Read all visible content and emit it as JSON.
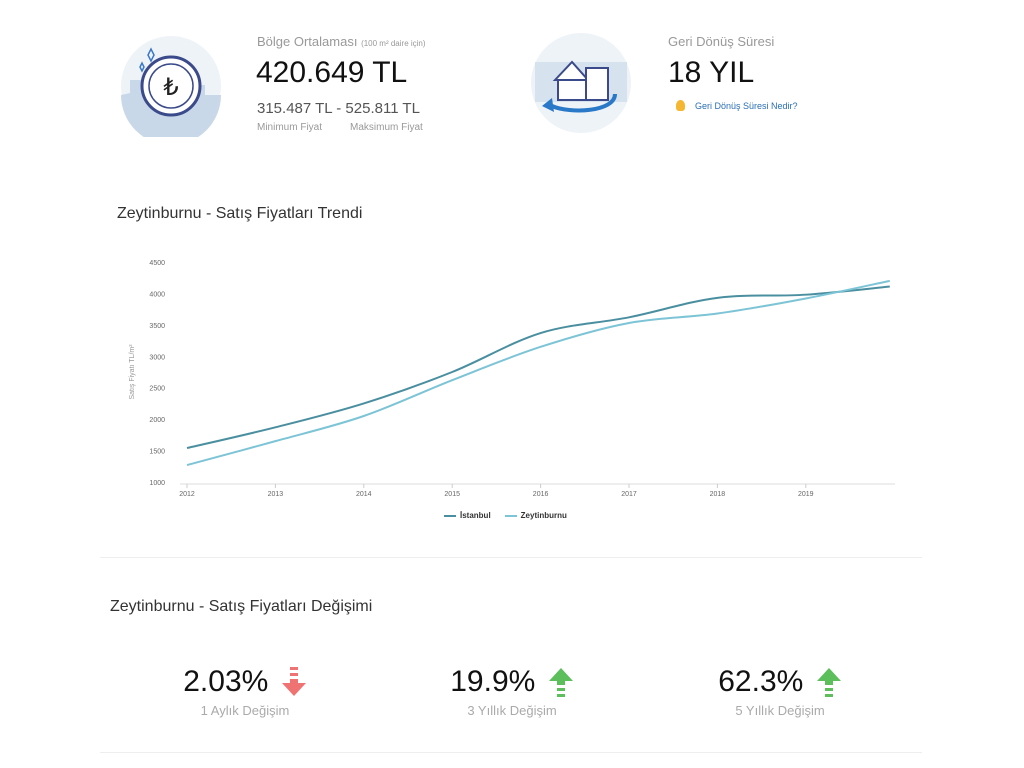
{
  "summary": {
    "region_avg_label": "Bölge Ortalaması",
    "region_avg_note": "(100 m² daire için)",
    "region_avg_value": "420.649 TL",
    "min_price": "315.487 TL",
    "range_sep": "-",
    "max_price": "525.811 TL",
    "min_label": "Minimum Fiyat",
    "max_label": "Maksimum Fiyat",
    "payback_label": "Geri Dönüş Süresi",
    "payback_value": "18 YIL",
    "payback_link": "Geri Dönüş Süresi Nedir?"
  },
  "trend": {
    "title": "Zeytinburnu - Satış Fiyatları Trendi"
  },
  "chart_data": {
    "type": "line",
    "title": "Zeytinburnu - Satış Fiyatları Trendi",
    "xlabel": "",
    "ylabel": "Satış Fiyatı TL/m²",
    "ylim": [
      1000,
      4500
    ],
    "xlim": [
      2011.95,
      2020.0
    ],
    "yticks": [
      "1000",
      "1500",
      "2000",
      "2500",
      "3000",
      "3500",
      "4000",
      "4500"
    ],
    "xticks": [
      "2012",
      "2013",
      "2014",
      "2015",
      "2016",
      "2017",
      "2018",
      "2019"
    ],
    "x": [
      2012,
      2013,
      2014,
      2015,
      2016,
      2017,
      2018,
      2019,
      2019.95
    ],
    "series": [
      {
        "name": "İstanbul",
        "color": "#4a8fa0",
        "values": [
          1540,
          1870,
          2250,
          2750,
          3370,
          3620,
          3930,
          3980,
          4110
        ]
      },
      {
        "name": "Zeytinburnu",
        "color": "#7cc4d6",
        "values": [
          1270,
          1650,
          2050,
          2620,
          3150,
          3530,
          3680,
          3920,
          4200
        ]
      }
    ],
    "legend": "bottom-center",
    "grid": false
  },
  "change": {
    "title": "Zeytinburnu - Satış Fiyatları Değişimi",
    "items": [
      {
        "value": "2.03%",
        "label": "1 Aylık Değişim",
        "direction": "down",
        "color": "#f07373"
      },
      {
        "value": "19.9%",
        "label": "3 Yıllık Değişim",
        "direction": "up",
        "color": "#5cbf5c"
      },
      {
        "value": "62.3%",
        "label": "5 Yıllık Değişim",
        "direction": "up",
        "color": "#5cbf5c"
      }
    ]
  }
}
